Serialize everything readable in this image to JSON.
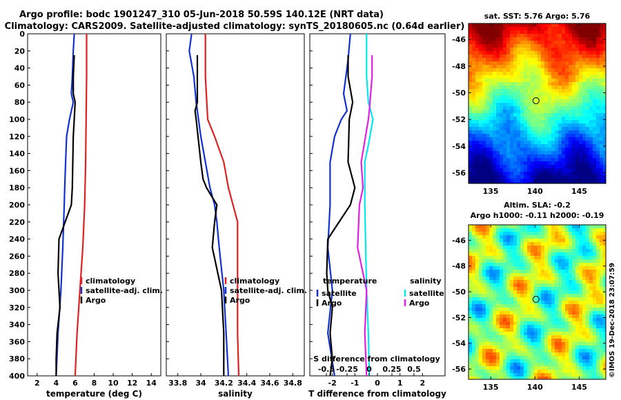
{
  "title_line1": "Argo profile: bodc 1901247_310 05-Jun-2018 50.59S 140.12E (NRT data)",
  "title_line2": "Climatology: CARS2009. Satellite-adjusted climatology: synTS_20180605.nc (0.64d earlier)",
  "copyright": "©IMOS 19-Dec-2018 23:07:59",
  "colors": {
    "climatology": "#e02020",
    "satellite": "#1030d0",
    "argo": "#000000",
    "cyan": "#00e8f0",
    "magenta": "#e020e0"
  },
  "chart_data": [
    {
      "type": "line",
      "xlabel": "temperature (deg C)",
      "xlim": [
        1,
        15
      ],
      "xticks": [
        "2",
        "4",
        "6",
        "8",
        "10",
        "12",
        "14"
      ],
      "xtick_values": [
        2,
        4,
        6,
        8,
        10,
        12,
        14
      ],
      "ylim": [
        0,
        400
      ],
      "yticks": [
        "0",
        "20",
        "40",
        "60",
        "80",
        "100",
        "120",
        "140",
        "160",
        "180",
        "200",
        "220",
        "240",
        "260",
        "280",
        "300",
        "320",
        "340",
        "360",
        "380",
        "400"
      ],
      "ytick_values": [
        0,
        20,
        40,
        60,
        80,
        100,
        120,
        140,
        160,
        180,
        200,
        220,
        240,
        260,
        280,
        300,
        320,
        340,
        360,
        380,
        400
      ],
      "legend": [
        "climatology",
        "satellite-adj. clim.",
        "Argo"
      ],
      "series": [
        {
          "name": "climatology",
          "color": "climatology",
          "depth": [
            0,
            50,
            100,
            150,
            200,
            250,
            300,
            350,
            400
          ],
          "values": [
            7.2,
            7.2,
            7.15,
            7.1,
            7.0,
            6.8,
            6.5,
            6.2,
            6.0
          ]
        },
        {
          "name": "satellite-adj. clim.",
          "color": "satellite",
          "depth": [
            0,
            20,
            50,
            70,
            80,
            100,
            120,
            150,
            180,
            200,
            250,
            300,
            350,
            400
          ],
          "values": [
            5.9,
            5.8,
            5.7,
            5.6,
            5.8,
            5.4,
            5.1,
            5.0,
            4.9,
            4.85,
            4.7,
            4.5,
            4.2,
            4.0
          ]
        },
        {
          "name": "Argo",
          "color": "argo",
          "depth": [
            25,
            50,
            70,
            80,
            100,
            120,
            150,
            180,
            200,
            240,
            280,
            300,
            320,
            350,
            380,
            400
          ],
          "values": [
            5.9,
            5.8,
            5.8,
            6.0,
            5.9,
            5.8,
            5.75,
            5.7,
            5.6,
            4.3,
            4.2,
            4.3,
            4.4,
            4.1,
            4.0,
            4.0
          ]
        }
      ]
    },
    {
      "type": "line",
      "xlabel": "salinity",
      "xlim": [
        33.7,
        34.9
      ],
      "xticks": [
        "33.8",
        "34",
        "34.2",
        "34.4",
        "34.6",
        "34.8"
      ],
      "xtick_values": [
        33.8,
        34.0,
        34.2,
        34.4,
        34.6,
        34.8
      ],
      "ylim": [
        0,
        400
      ],
      "legend": [
        "climatology",
        "satellite-adj. clim.",
        "Argo"
      ],
      "series": [
        {
          "name": "climatology",
          "color": "climatology",
          "depth": [
            0,
            50,
            100,
            120,
            150,
            180,
            200,
            220,
            250,
            300,
            350,
            400
          ],
          "values": [
            34.04,
            34.04,
            34.06,
            34.12,
            34.2,
            34.24,
            34.28,
            34.32,
            34.32,
            34.32,
            34.32,
            34.33
          ]
        },
        {
          "name": "satellite-adj. clim.",
          "color": "satellite",
          "depth": [
            0,
            20,
            50,
            80,
            100,
            120,
            150,
            180,
            200,
            220,
            250,
            300,
            350,
            400
          ],
          "values": [
            33.92,
            33.9,
            33.94,
            33.96,
            33.98,
            34.0,
            34.04,
            34.08,
            34.12,
            34.14,
            34.16,
            34.2,
            34.22,
            34.24
          ]
        },
        {
          "name": "Argo",
          "color": "argo",
          "depth": [
            25,
            50,
            80,
            90,
            100,
            150,
            170,
            180,
            200,
            220,
            250,
            300,
            350,
            400
          ],
          "values": [
            33.97,
            33.97,
            33.97,
            33.95,
            33.96,
            34.0,
            34.02,
            34.05,
            34.14,
            34.12,
            34.1,
            34.18,
            34.2,
            34.2
          ]
        }
      ]
    },
    {
      "type": "line",
      "xlabel": "T difference from climatology",
      "xlim": [
        -3,
        3
      ],
      "xticks": [
        "-2",
        "-1",
        "0",
        "1",
        "2"
      ],
      "xtick_values": [
        -2,
        -1,
        0,
        1,
        2
      ],
      "x2label": "S difference from climatology",
      "x2ticks": [
        "-0.5",
        "-0.25",
        "0",
        "0.25",
        "0.5"
      ],
      "ylim": [
        0,
        400
      ],
      "legend_left_title": "temperature",
      "legend_left": [
        "satellite",
        "Argo"
      ],
      "legend_right_title": "salinity",
      "legend_right": [
        "satellite",
        "Argo"
      ],
      "series": [
        {
          "name": "T satellite",
          "color": "satellite",
          "depth": [
            0,
            30,
            50,
            70,
            90,
            100,
            120,
            150,
            200,
            250,
            300,
            350,
            400
          ],
          "values": [
            -1.2,
            -1.3,
            -1.4,
            -1.5,
            -1.35,
            -1.6,
            -1.9,
            -2.1,
            -2.1,
            -2.2,
            -2.0,
            -2.2,
            -1.9
          ]
        },
        {
          "name": "T Argo",
          "color": "argo",
          "depth": [
            25,
            50,
            80,
            100,
            150,
            180,
            200,
            240,
            280,
            300,
            320,
            350,
            380,
            400
          ],
          "values": [
            -1.3,
            -1.3,
            -1.1,
            -1.25,
            -1.3,
            -1.0,
            -1.2,
            -2.2,
            -2.25,
            -2.2,
            -2.0,
            -2.1,
            -2.0,
            -2.1
          ]
        },
        {
          "name": "S satellite",
          "color": "cyan",
          "depth": [
            0,
            50,
            80,
            100,
            130,
            150,
            200,
            250,
            300,
            350,
            400
          ],
          "values": [
            -0.12,
            -0.12,
            -0.1,
            -0.05,
            -0.1,
            -0.14,
            -0.14,
            -0.13,
            -0.12,
            -0.1,
            -0.09
          ]
        },
        {
          "name": "S Argo",
          "color": "magenta",
          "depth": [
            25,
            50,
            90,
            100,
            150,
            180,
            200,
            250,
            300,
            350,
            400
          ],
          "values": [
            -0.06,
            -0.06,
            -0.09,
            -0.1,
            -0.18,
            -0.16,
            -0.2,
            -0.22,
            -0.12,
            -0.14,
            -0.12
          ]
        }
      ]
    },
    {
      "type": "heatmap",
      "title": "sat. SST: 5.76 Argo: 5.76",
      "xlim": [
        132.5,
        148
      ],
      "ylim": [
        -56.8,
        -44.8
      ],
      "xticks": [
        "135",
        "140",
        "145"
      ],
      "xtick_values": [
        135,
        140,
        145
      ],
      "yticks": [
        "-46",
        "-48",
        "-50",
        "-52",
        "-54",
        "-56"
      ],
      "ytick_values": [
        -46,
        -48,
        -50,
        -52,
        -54,
        -56
      ],
      "argo_position": [
        140.12,
        -50.59
      ]
    },
    {
      "type": "heatmap",
      "title": "Altim. SLA: -0.2",
      "subtitle": "Argo h1000: -0.11 h2000: -0.19",
      "xlim": [
        132.5,
        148
      ],
      "ylim": [
        -56.8,
        -44.8
      ],
      "xticks": [
        "135",
        "140",
        "145"
      ],
      "xtick_values": [
        135,
        140,
        145
      ],
      "yticks": [
        "-46",
        "-48",
        "-50",
        "-52",
        "-54",
        "-56"
      ],
      "ytick_values": [
        -46,
        -48,
        -50,
        -52,
        -54,
        -56
      ],
      "argo_position": [
        140.12,
        -50.59
      ]
    }
  ]
}
